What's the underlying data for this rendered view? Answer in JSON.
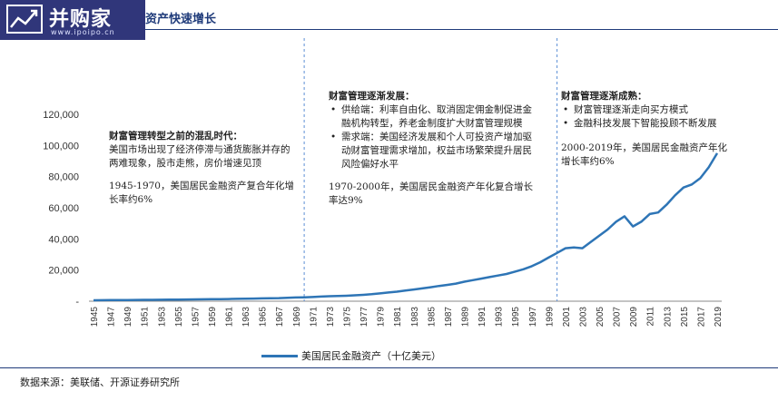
{
  "logo": {
    "brand": "并购家",
    "url": "www.ipoipo.cn"
  },
  "title": "资产快速增长",
  "chart_data": {
    "type": "line",
    "ylim": [
      0,
      120000
    ],
    "yticks": [
      0,
      20000,
      40000,
      60000,
      80000,
      100000,
      120000
    ],
    "ytick_labels": [
      "-",
      "20,000",
      "40,000",
      "60,000",
      "80,000",
      "100,000",
      "120,000"
    ],
    "xtick_labels": [
      "1945",
      "1947",
      "1949",
      "1951",
      "1953",
      "1955",
      "1957",
      "1959",
      "1961",
      "1963",
      "1965",
      "1967",
      "1969",
      "1971",
      "1973",
      "1975",
      "1977",
      "1979",
      "1981",
      "1983",
      "1985",
      "1987",
      "1989",
      "1991",
      "1993",
      "1995",
      "1997",
      "1999",
      "2001",
      "2003",
      "2005",
      "2007",
      "2009",
      "2011",
      "2013",
      "2015",
      "2017",
      "2019"
    ],
    "x": [
      1945,
      1946,
      1947,
      1948,
      1949,
      1950,
      1951,
      1952,
      1953,
      1954,
      1955,
      1956,
      1957,
      1958,
      1959,
      1960,
      1961,
      1962,
      1963,
      1964,
      1965,
      1966,
      1967,
      1968,
      1969,
      1970,
      1971,
      1972,
      1973,
      1974,
      1975,
      1976,
      1977,
      1978,
      1979,
      1980,
      1981,
      1982,
      1983,
      1984,
      1985,
      1986,
      1987,
      1988,
      1989,
      1990,
      1991,
      1992,
      1993,
      1994,
      1995,
      1996,
      1997,
      1998,
      1999,
      2000,
      2001,
      2002,
      2003,
      2004,
      2005,
      2006,
      2007,
      2008,
      2009,
      2010,
      2011,
      2012,
      2013,
      2014,
      2015,
      2016,
      2017,
      2018,
      2019
    ],
    "series": [
      {
        "name": "美国居民金融资产（十亿美元）",
        "color": "#2e75b6",
        "values": [
          600,
          650,
          700,
          720,
          750,
          800,
          850,
          900,
          950,
          1000,
          1050,
          1100,
          1150,
          1200,
          1300,
          1350,
          1400,
          1500,
          1600,
          1700,
          1800,
          1900,
          2000,
          2200,
          2400,
          2500,
          2700,
          3000,
          3200,
          3300,
          3500,
          3800,
          4100,
          4500,
          5000,
          5600,
          6100,
          6800,
          7500,
          8200,
          9000,
          9800,
          10500,
          11300,
          12500,
          13500,
          14500,
          15500,
          16500,
          17500,
          19000,
          20500,
          22500,
          25000,
          28000,
          31000,
          34000,
          34500,
          34000,
          38000,
          42000,
          46000,
          51000,
          54500,
          48000,
          51000,
          56000,
          57000,
          62000,
          68000,
          73000,
          75000,
          79000,
          86000,
          95000
        ]
      }
    ],
    "dividers": [
      1970,
      2000
    ],
    "legend_placement": "bottom-center",
    "grid": false
  },
  "annotations": {
    "era1": {
      "head": "财富管理转型之前的混乱时代：",
      "body": "美国市场出现了经济停滞与通货膨胀并存的两难现象，股市走熊，房价增速见顶",
      "growth": "1945-1970，美国居民金融资产复合年化增长率约6%"
    },
    "era2": {
      "head": "财富管理逐渐发展：",
      "bullets": [
        "供给端：利率自由化、取消固定佣金制促进金融机构转型，养老金制度扩大财富管理规模",
        "需求端：美国经济发展和个人可投资产增加驱动财富管理需求增加，权益市场繁荣提升居民风险偏好水平"
      ],
      "growth": "1970-2000年，美国居民金融资产年化复合增长率达9%"
    },
    "era3": {
      "head": "财富管理逐渐成熟：",
      "bullets": [
        "财富管理逐渐走向买方模式",
        "金融科技发展下智能投顾不断发展"
      ],
      "growth": "2000-2019年，美国居民金融资产年化增长率约6%"
    }
  },
  "legend": {
    "label": "美国居民金融资产（十亿美元）"
  },
  "source": "数据来源：美联储、开源证券研究所"
}
